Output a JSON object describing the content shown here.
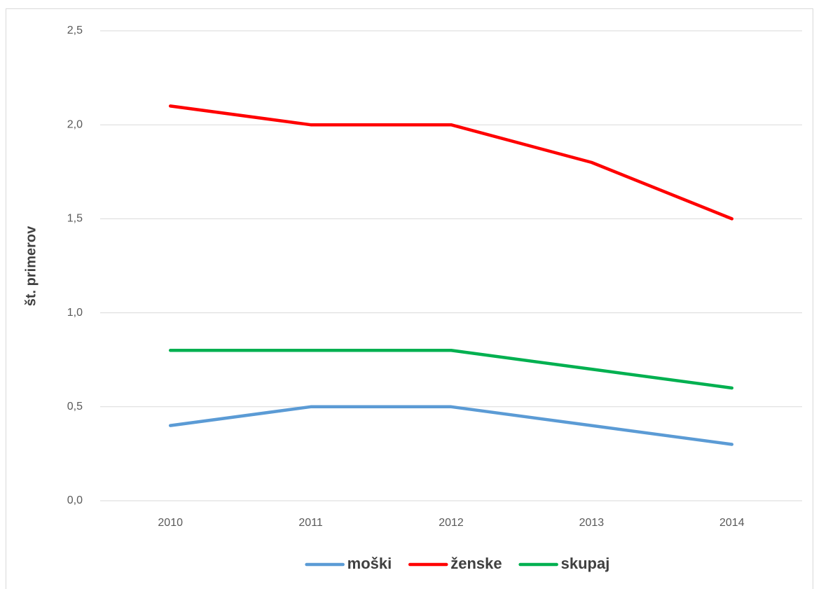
{
  "chart_data": {
    "type": "line",
    "y_label": "št. primerov",
    "categories": [
      "2010",
      "2011",
      "2012",
      "2013",
      "2014"
    ],
    "series": [
      {
        "name": "moški",
        "color": "#5b9bd5",
        "values": [
          0.4,
          0.5,
          0.5,
          0.4,
          0.3
        ]
      },
      {
        "name": "ženske",
        "color": "#ff0000",
        "values": [
          2.1,
          2.0,
          2.0,
          1.8,
          1.5
        ]
      },
      {
        "name": "skupaj",
        "color": "#00b050",
        "values": [
          0.8,
          0.8,
          0.8,
          0.7,
          0.6
        ]
      }
    ],
    "ylim": [
      0,
      2.5
    ],
    "yticks": [
      {
        "value": 0,
        "label": "0,0"
      },
      {
        "value": 0.5,
        "label": "0,5"
      },
      {
        "value": 1,
        "label": "1,0"
      },
      {
        "value": 1.5,
        "label": "1,5"
      },
      {
        "value": 2,
        "label": "2,0"
      },
      {
        "value": 2.5,
        "label": "2,5"
      }
    ],
    "grid": true,
    "legend": "bottom"
  }
}
